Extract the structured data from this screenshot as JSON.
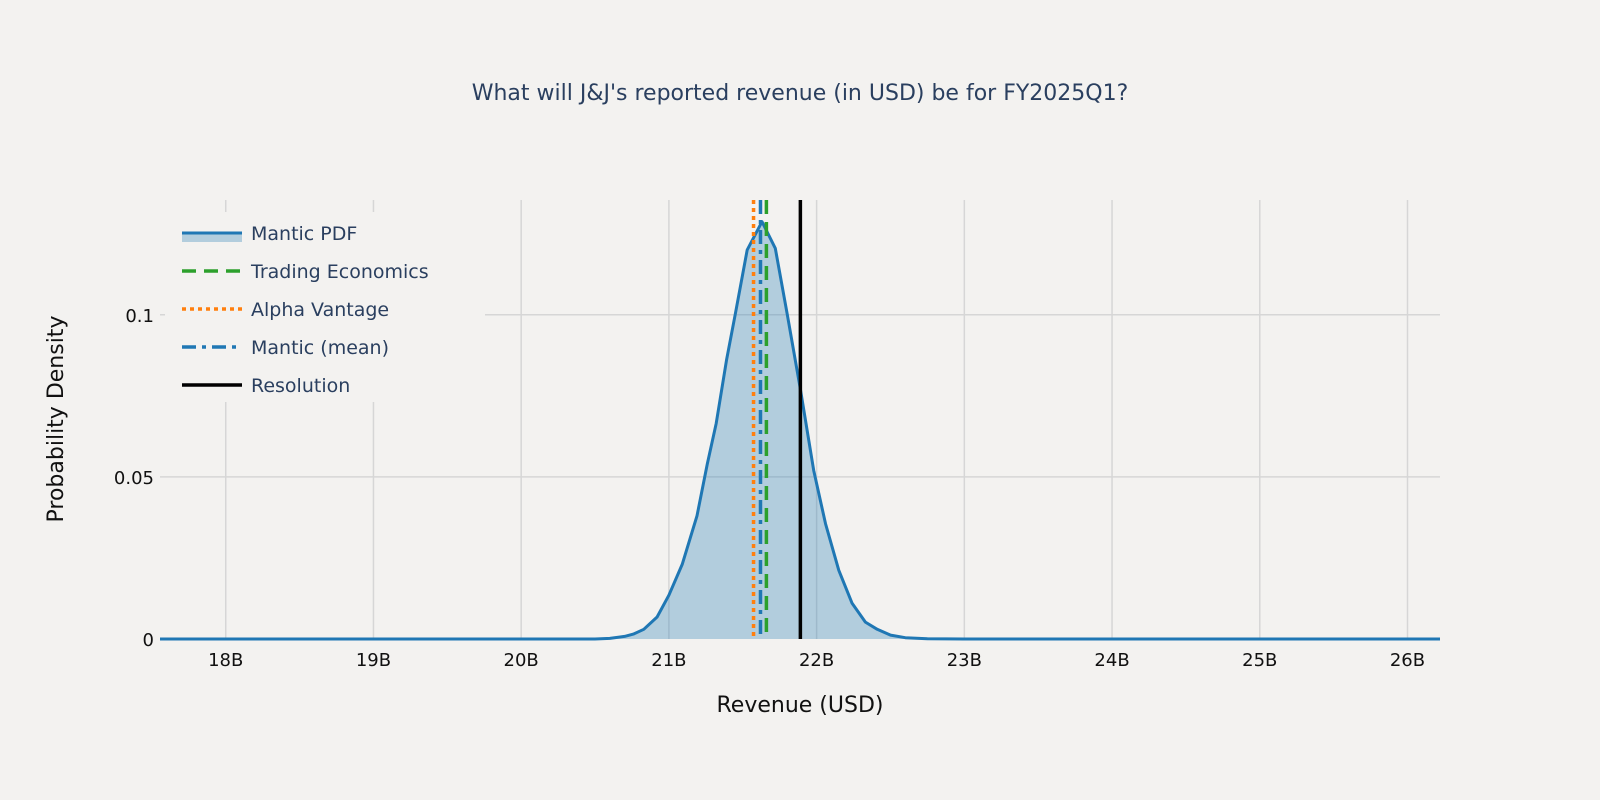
{
  "chart_data": {
    "type": "area",
    "title": "What will J&J's reported revenue (in USD) be for FY2025Q1?",
    "xlabel": "Revenue (USD)",
    "ylabel": "Probability Density",
    "xlim": [
      17.555,
      26.22
    ],
    "ylim": [
      0,
      0.1354
    ],
    "x_unit": "billion USD",
    "grid": true,
    "legend_position": "top-left",
    "x_ticks": [
      18,
      19,
      20,
      21,
      22,
      23,
      24,
      25,
      26
    ],
    "x_tick_labels": [
      "18B",
      "19B",
      "20B",
      "21B",
      "22B",
      "23B",
      "24B",
      "25B",
      "26B"
    ],
    "y_ticks": [
      0,
      0.05,
      0.1
    ],
    "y_tick_labels": [
      "0",
      "0.05",
      "0.1"
    ],
    "series": [
      {
        "name": "Mantic PDF",
        "kind": "filled-line",
        "color": "#1f77b4",
        "fill": "rgba(31,119,180,0.3)",
        "x": [
          17.555,
          18,
          19,
          20,
          20.5,
          20.6,
          20.7,
          20.76,
          20.83,
          20.92,
          21.0,
          21.09,
          21.19,
          21.26,
          21.32,
          21.39,
          21.45,
          21.53,
          21.63,
          21.72,
          21.8,
          21.89,
          21.98,
          22.06,
          22.15,
          22.24,
          22.33,
          22.41,
          22.5,
          22.6,
          22.75,
          23,
          24,
          25,
          26,
          26.22
        ],
        "y": [
          0,
          0,
          0,
          0,
          0,
          0.0002,
          0.0008,
          0.0015,
          0.003,
          0.0068,
          0.0135,
          0.023,
          0.038,
          0.054,
          0.0665,
          0.086,
          0.1004,
          0.12,
          0.1287,
          0.1205,
          0.1004,
          0.077,
          0.052,
          0.0356,
          0.0212,
          0.011,
          0.0052,
          0.003,
          0.0012,
          0.0004,
          0.0001,
          0,
          0,
          0,
          0,
          0
        ]
      },
      {
        "name": "Trading Economics",
        "kind": "vline",
        "x": 21.66,
        "color": "#2ca02c",
        "dash": "dash"
      },
      {
        "name": "Alpha Vantage",
        "kind": "vline",
        "x": 21.573,
        "color": "#ff7f0e",
        "dash": "dot"
      },
      {
        "name": "Mantic (mean)",
        "kind": "vline",
        "x": 21.62,
        "color": "#1f77b4",
        "dash": "dashdot"
      },
      {
        "name": "Resolution",
        "kind": "vline",
        "x": 21.89,
        "color": "#000000",
        "dash": "solid"
      }
    ]
  }
}
